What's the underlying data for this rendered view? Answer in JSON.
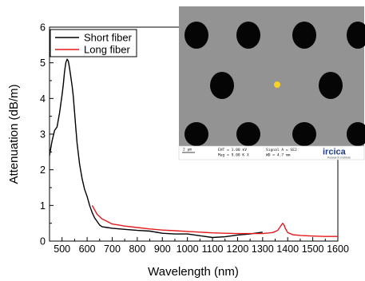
{
  "chart_data": {
    "type": "line",
    "xlabel": "Wavelength (nm)",
    "ylabel": "Attenuation (dB/m)",
    "xlim": [
      450,
      1600
    ],
    "ylim": [
      0,
      6
    ],
    "x_ticks": [
      500,
      600,
      700,
      800,
      900,
      1000,
      1100,
      1200,
      1300,
      1400,
      1500,
      1600
    ],
    "y_ticks": [
      0,
      1,
      2,
      3,
      4,
      5,
      6
    ],
    "grid": false,
    "legend_position": "top-left",
    "series": [
      {
        "name": "Short fiber",
        "color": "#000000",
        "x": [
          450,
          460,
          470,
          480,
          490,
          500,
          505,
          510,
          515,
          520,
          525,
          530,
          535,
          540,
          545,
          550,
          555,
          560,
          570,
          580,
          590,
          600,
          610,
          620,
          630,
          640,
          650,
          660,
          680,
          700,
          750,
          800,
          850,
          900,
          950,
          1000,
          1050,
          1100,
          1150,
          1200,
          1250,
          1300
        ],
        "y": [
          2.4,
          2.8,
          3.1,
          3.2,
          3.6,
          4.1,
          4.4,
          4.75,
          5.0,
          5.1,
          5.05,
          4.85,
          4.6,
          4.35,
          4.05,
          3.6,
          3.15,
          2.75,
          2.15,
          1.75,
          1.45,
          1.25,
          1.0,
          0.8,
          0.65,
          0.55,
          0.45,
          0.4,
          0.38,
          0.36,
          0.33,
          0.3,
          0.28,
          0.22,
          0.2,
          0.2,
          0.15,
          0.1,
          0.12,
          0.17,
          0.2,
          0.25
        ]
      },
      {
        "name": "Long fiber",
        "color": "#e31a1c",
        "x": [
          620,
          640,
          660,
          680,
          700,
          750,
          800,
          850,
          900,
          950,
          1000,
          1050,
          1100,
          1150,
          1200,
          1250,
          1300,
          1340,
          1360,
          1370,
          1380,
          1385,
          1390,
          1400,
          1420,
          1450,
          1500,
          1550,
          1600
        ],
        "y": [
          1.0,
          0.75,
          0.62,
          0.55,
          0.48,
          0.42,
          0.38,
          0.34,
          0.31,
          0.29,
          0.27,
          0.25,
          0.23,
          0.22,
          0.21,
          0.21,
          0.21,
          0.24,
          0.3,
          0.4,
          0.5,
          0.46,
          0.36,
          0.24,
          0.18,
          0.16,
          0.14,
          0.13,
          0.13
        ]
      }
    ]
  },
  "inset": {
    "scale_label": "2 µm",
    "eht": "EHT = 1.00 kV",
    "mag": "Mag = 9.08 K X",
    "signal": "Signal A = SE2",
    "wd": "WD = 4.7 mm",
    "logo": "ircica",
    "logo_sub": "Research Institute",
    "background_color": "#8f8f8f",
    "hole_color": "#050505",
    "marker_color": "#f5d327"
  }
}
